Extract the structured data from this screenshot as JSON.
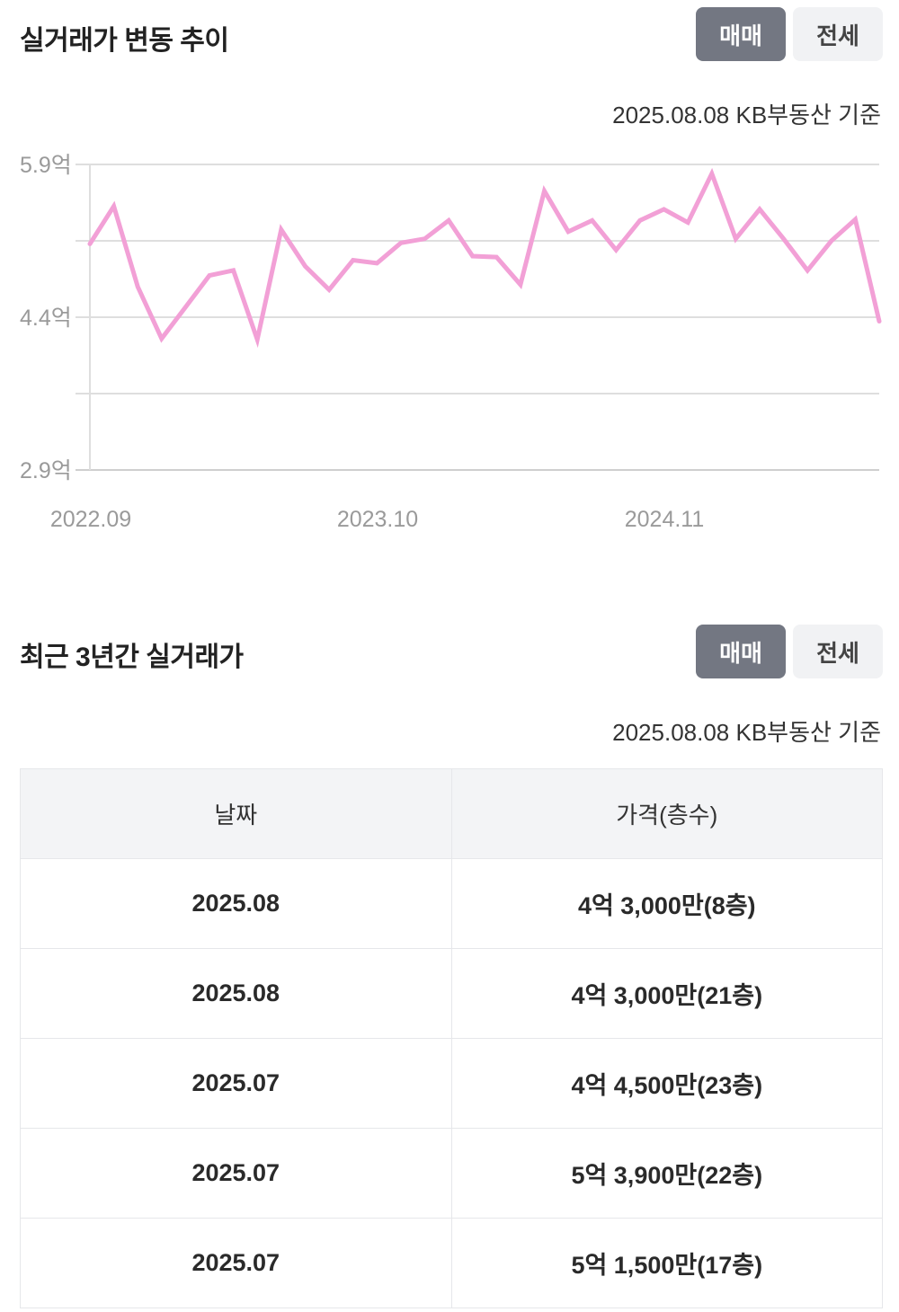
{
  "trend": {
    "title": "실거래가 변동 추이",
    "toggle": {
      "sale_label": "매매",
      "jeonse_label": "전세",
      "active": "sale"
    },
    "basis": "2025.08.08 KB부동산 기준"
  },
  "chart_data": {
    "type": "line",
    "y_tick_labels": [
      "5.9억",
      "4.4억",
      "2.9억"
    ],
    "x_tick_labels": [
      "2022.09",
      "2023.10",
      "2024.11"
    ],
    "ylim": [
      2.9,
      5.9
    ],
    "y_unit": "억",
    "grid": true,
    "line_color": "#f2a0d6",
    "series": [
      {
        "values": [
          5.12,
          5.49,
          4.7,
          4.19,
          4.5,
          4.81,
          4.86,
          4.18,
          5.26,
          4.9,
          4.67,
          4.96,
          4.93,
          5.13,
          5.17,
          5.35,
          5.0,
          4.99,
          4.72,
          5.64,
          5.24,
          5.35,
          5.06,
          5.35,
          5.46,
          5.33,
          5.81,
          5.17,
          5.46,
          5.17,
          4.86,
          5.15,
          5.36,
          4.36
        ]
      }
    ]
  },
  "recent": {
    "title": "최근 3년간 실거래가",
    "toggle": {
      "sale_label": "매매",
      "jeonse_label": "전세",
      "active": "sale"
    },
    "basis": "2025.08.08 KB부동산 기준",
    "columns": [
      "날짜",
      "가격(층수)"
    ],
    "rows": [
      {
        "date": "2025.08",
        "price": "4억 3,000만(8층)"
      },
      {
        "date": "2025.08",
        "price": "4억 3,000만(21층)"
      },
      {
        "date": "2025.07",
        "price": "4억 4,500만(23층)"
      },
      {
        "date": "2025.07",
        "price": "5억 3,900만(22층)"
      },
      {
        "date": "2025.07",
        "price": "5억 1,500만(17층)"
      }
    ]
  }
}
